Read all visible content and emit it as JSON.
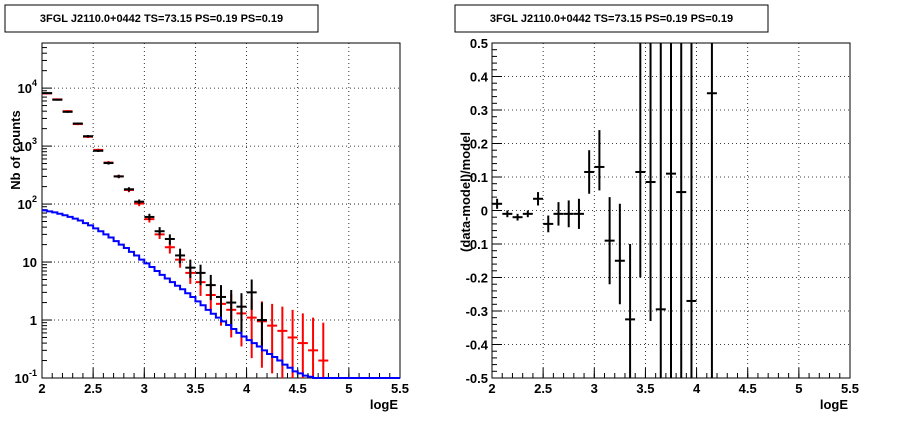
{
  "chart_data": [
    {
      "type": "scatter",
      "title": "3FGL J2110.0+0442 TS=73.15 PS=0.19 PS=0.19",
      "xlabel": "logE",
      "ylabel": "Nb of counts",
      "xlim": [
        2,
        5.5
      ],
      "ylim": [
        0.1,
        60000
      ],
      "yscale": "log",
      "grid": true,
      "x_ticks": [
        "2",
        "2.5",
        "3",
        "3.5",
        "4",
        "4.5",
        "5",
        "5.5"
      ],
      "y_ticks": [
        {
          "v": 0.1,
          "base": "10",
          "exp": "-1"
        },
        {
          "v": 1,
          "base": "1",
          "exp": ""
        },
        {
          "v": 10,
          "base": "10",
          "exp": ""
        },
        {
          "v": 100,
          "base": "10",
          "exp": "2"
        },
        {
          "v": 1000,
          "base": "10",
          "exp": "3"
        },
        {
          "v": 10000,
          "base": "10",
          "exp": "4"
        }
      ],
      "series": [
        {
          "color": "#ff0000",
          "kind": "points",
          "x": [
            2.05,
            2.15,
            2.25,
            2.35,
            2.45,
            2.55,
            2.65,
            2.75,
            2.85,
            2.95,
            3.05,
            3.15,
            3.25,
            3.35,
            3.45,
            3.55,
            3.65,
            3.75,
            3.85,
            3.95,
            4.05,
            4.15,
            4.25,
            4.35,
            4.45,
            4.55,
            4.65,
            4.75
          ],
          "y": [
            8100,
            6400,
            4000,
            2400,
            1450,
            860,
            520,
            300,
            175,
            102,
            55,
            30,
            18,
            11,
            6.5,
            4.5,
            2.7,
            1.9,
            1.5,
            1.3,
            1.1,
            0.95,
            0.8,
            0.65,
            0.5,
            0.4,
            0.3,
            0.2
          ],
          "ylo": [
            7900,
            6200,
            3850,
            2300,
            1380,
            820,
            490,
            280,
            160,
            92,
            48,
            25,
            14,
            8,
            4.2,
            2.6,
            1.4,
            0.8,
            0.5,
            0.35,
            0.22,
            0.15,
            0.12,
            0.1,
            0.1,
            0.1,
            0.1,
            0.1
          ],
          "yhi": [
            8300,
            6600,
            4150,
            2500,
            1520,
            900,
            550,
            320,
            190,
            112,
            62,
            35,
            22,
            14,
            8.8,
            6.4,
            4.3,
            3.3,
            2.8,
            2.6,
            2.3,
            2.1,
            1.9,
            1.7,
            1.5,
            1.3,
            1.1,
            0.9
          ]
        },
        {
          "color": "#000000",
          "kind": "points",
          "x": [
            2.05,
            2.15,
            2.25,
            2.35,
            2.45,
            2.55,
            2.65,
            2.75,
            2.85,
            2.95,
            3.05,
            3.15,
            3.25,
            3.35,
            3.45,
            3.55,
            3.65,
            3.75,
            3.85,
            3.95,
            4.05,
            4.15
          ],
          "y": [
            8200,
            6300,
            3900,
            2450,
            1480,
            830,
            510,
            300,
            180,
            110,
            60,
            34,
            25,
            13,
            8,
            6.5,
            4,
            2.5,
            2,
            1.7,
            3,
            1
          ],
          "ylo": [
            8000,
            6100,
            3750,
            2350,
            1410,
            790,
            480,
            280,
            165,
            100,
            53,
            29,
            20,
            9.5,
            5.3,
            4,
            2.2,
            1.1,
            0.75,
            0.6,
            1.5,
            0.35
          ],
          "yhi": [
            8400,
            6500,
            4050,
            2550,
            1550,
            870,
            540,
            320,
            195,
            120,
            68,
            40,
            30,
            17,
            11,
            9,
            6,
            4,
            3.3,
            2.9,
            5,
            2
          ]
        },
        {
          "color": "#0000ff",
          "kind": "step",
          "edges": [
            2.0,
            2.05,
            2.1,
            2.15,
            2.2,
            2.25,
            2.3,
            2.35,
            2.4,
            2.45,
            2.5,
            2.55,
            2.6,
            2.65,
            2.7,
            2.75,
            2.8,
            2.85,
            2.9,
            2.95,
            3.0,
            3.05,
            3.1,
            3.15,
            3.2,
            3.25,
            3.3,
            3.35,
            3.4,
            3.45,
            3.5,
            3.55,
            3.6,
            3.65,
            3.7,
            3.75,
            3.8,
            3.85,
            3.9,
            3.95,
            4.0,
            4.05,
            4.1,
            4.15,
            4.2,
            4.25,
            4.3,
            4.35,
            4.4,
            4.45,
            4.5,
            4.55,
            4.6,
            4.65,
            4.7,
            4.75,
            4.8,
            4.85,
            5.5
          ],
          "values": [
            78,
            75,
            72,
            68,
            64,
            60,
            56,
            52,
            47,
            43,
            38,
            34,
            30,
            26.5,
            23,
            20,
            17.5,
            15,
            13,
            11,
            9.5,
            8.2,
            7,
            6,
            5.2,
            4.5,
            3.9,
            3.4,
            2.9,
            2.5,
            2.1,
            1.8,
            1.5,
            1.28,
            1.1,
            0.95,
            0.82,
            0.7,
            0.6,
            0.52,
            0.45,
            0.4,
            0.35,
            0.3,
            0.26,
            0.23,
            0.2,
            0.17,
            0.15,
            0.13,
            0.12,
            0.11,
            0.105,
            0.1,
            0.1,
            0.1,
            0.1,
            0.1
          ]
        }
      ]
    },
    {
      "type": "scatter",
      "title": "3FGL J2110.0+0442 TS=73.15 PS=0.19 PS=0.19",
      "xlabel": "logE",
      "ylabel": "(data-model)/model",
      "xlim": [
        2,
        5.5
      ],
      "ylim": [
        -0.5,
        0.5
      ],
      "grid": true,
      "x_ticks": [
        "2",
        "2.5",
        "3",
        "3.5",
        "4",
        "4.5",
        "5",
        "5.5"
      ],
      "y_ticks": [
        "-0.5",
        "-0.4",
        "-0.3",
        "-0.2",
        "-0.1",
        "0",
        "0.1",
        "0.2",
        "0.3",
        "0.4",
        "0.5"
      ],
      "series": [
        {
          "color": "#000000",
          "kind": "points",
          "x": [
            2.05,
            2.15,
            2.25,
            2.35,
            2.45,
            2.55,
            2.65,
            2.75,
            2.85,
            2.95,
            3.05,
            3.15,
            3.25,
            3.35,
            3.45,
            3.55,
            3.65,
            3.75,
            3.85,
            3.95,
            4.15
          ],
          "y": [
            0.02,
            -0.01,
            -0.02,
            -0.01,
            0.035,
            -0.04,
            -0.01,
            -0.01,
            -0.01,
            0.115,
            0.13,
            -0.09,
            -0.15,
            -0.325,
            0.115,
            0.085,
            -0.295,
            0.11,
            0.055,
            -0.27,
            0.35
          ],
          "ylo": [
            0.005,
            -0.02,
            -0.03,
            -0.02,
            0.015,
            -0.065,
            -0.045,
            -0.05,
            -0.055,
            0.05,
            0.06,
            -0.22,
            -0.28,
            -0.5,
            -0.2,
            -0.33,
            -0.5,
            -0.5,
            -0.5,
            -0.5,
            -0.5
          ],
          "yhi": [
            0.035,
            0.0,
            -0.01,
            0.0,
            0.055,
            -0.015,
            0.025,
            0.03,
            0.035,
            0.18,
            0.24,
            0.04,
            0.02,
            -0.1,
            0.5,
            0.5,
            0.5,
            0.5,
            0.5,
            0.5,
            0.5
          ]
        }
      ]
    }
  ]
}
